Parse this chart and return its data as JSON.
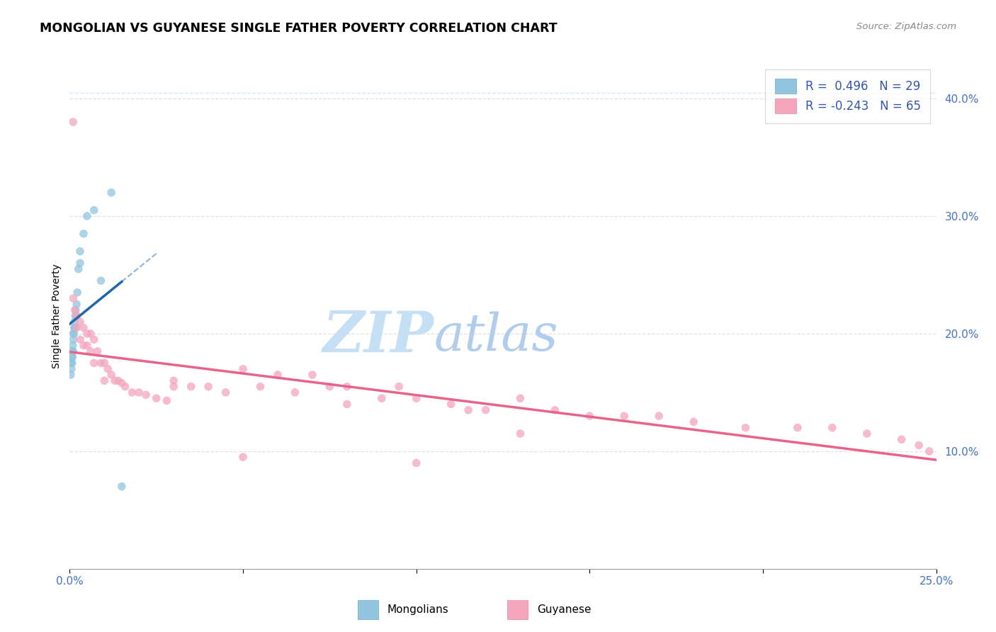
{
  "title": "MONGOLIAN VS GUYANESE SINGLE FATHER POVERTY CORRELATION CHART",
  "source": "Source: ZipAtlas.com",
  "ylabel": "Single Father Poverty",
  "color_mongolian": "#92c5de",
  "color_guyanese": "#f4a6bd",
  "color_trendline_mongolian": "#2166ac",
  "color_trendline_guyanese": "#e8638a",
  "color_refline": "#c8dff0",
  "watermark_zip": "ZIP",
  "watermark_atlas": "atlas",
  "watermark_color_zip": "#c8dff0",
  "watermark_color_atlas": "#b8cfe8",
  "legend_label_mongolians": "R =  0.496   N = 29",
  "legend_label_guyanese": "R = -0.243   N = 65",
  "xlim": [
    0.0,
    0.25
  ],
  "ylim": [
    0.0,
    0.43
  ],
  "xticks": [
    0.0,
    0.05,
    0.1,
    0.15,
    0.2,
    0.25
  ],
  "right_yticks": [
    0.1,
    0.2,
    0.3,
    0.4
  ],
  "right_ytick_labels": [
    "10.0%",
    "20.0%",
    "30.0%",
    "40.0%"
  ],
  "mongolian_x": [
    0.0003,
    0.0004,
    0.0005,
    0.0006,
    0.0007,
    0.0008,
    0.0008,
    0.0009,
    0.001,
    0.001,
    0.001,
    0.0012,
    0.0013,
    0.0014,
    0.0015,
    0.0016,
    0.0017,
    0.002,
    0.002,
    0.0022,
    0.0025,
    0.003,
    0.003,
    0.004,
    0.005,
    0.007,
    0.009,
    0.012,
    0.015
  ],
  "mongolian_y": [
    0.165,
    0.175,
    0.17,
    0.18,
    0.175,
    0.18,
    0.185,
    0.19,
    0.185,
    0.195,
    0.2,
    0.2,
    0.205,
    0.21,
    0.205,
    0.215,
    0.22,
    0.215,
    0.225,
    0.235,
    0.255,
    0.26,
    0.27,
    0.285,
    0.3,
    0.305,
    0.245,
    0.32,
    0.07
  ],
  "guyanese_x": [
    0.001,
    0.001,
    0.0015,
    0.002,
    0.002,
    0.003,
    0.003,
    0.004,
    0.004,
    0.005,
    0.005,
    0.006,
    0.006,
    0.007,
    0.007,
    0.008,
    0.009,
    0.01,
    0.01,
    0.011,
    0.012,
    0.013,
    0.014,
    0.015,
    0.016,
    0.018,
    0.02,
    0.022,
    0.025,
    0.028,
    0.03,
    0.035,
    0.04,
    0.045,
    0.05,
    0.055,
    0.06,
    0.065,
    0.07,
    0.075,
    0.08,
    0.09,
    0.095,
    0.1,
    0.11,
    0.115,
    0.12,
    0.13,
    0.14,
    0.15,
    0.16,
    0.17,
    0.18,
    0.195,
    0.21,
    0.22,
    0.23,
    0.24,
    0.245,
    0.248,
    0.05,
    0.08,
    0.1,
    0.13,
    0.03
  ],
  "guyanese_y": [
    0.38,
    0.23,
    0.22,
    0.215,
    0.205,
    0.21,
    0.195,
    0.205,
    0.19,
    0.2,
    0.19,
    0.2,
    0.185,
    0.195,
    0.175,
    0.185,
    0.175,
    0.175,
    0.16,
    0.17,
    0.165,
    0.16,
    0.16,
    0.158,
    0.155,
    0.15,
    0.15,
    0.148,
    0.145,
    0.143,
    0.16,
    0.155,
    0.155,
    0.15,
    0.17,
    0.155,
    0.165,
    0.15,
    0.165,
    0.155,
    0.155,
    0.145,
    0.155,
    0.145,
    0.14,
    0.135,
    0.135,
    0.145,
    0.135,
    0.13,
    0.13,
    0.13,
    0.125,
    0.12,
    0.12,
    0.12,
    0.115,
    0.11,
    0.105,
    0.1,
    0.095,
    0.14,
    0.09,
    0.115,
    0.155
  ]
}
